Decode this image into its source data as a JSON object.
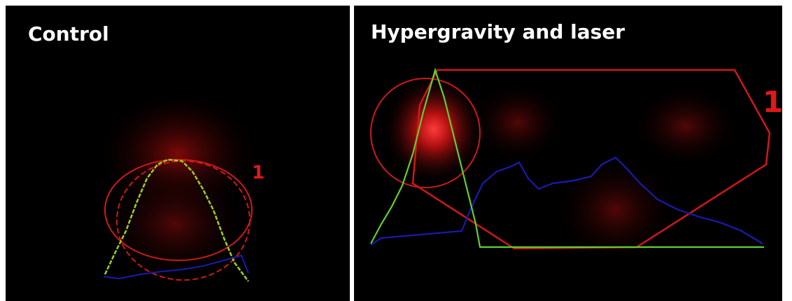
{
  "panels": [
    {
      "title": "Control",
      "roi_label": "1"
    },
    {
      "title": "Hypergravity and laser",
      "roi_label": "1"
    }
  ]
}
